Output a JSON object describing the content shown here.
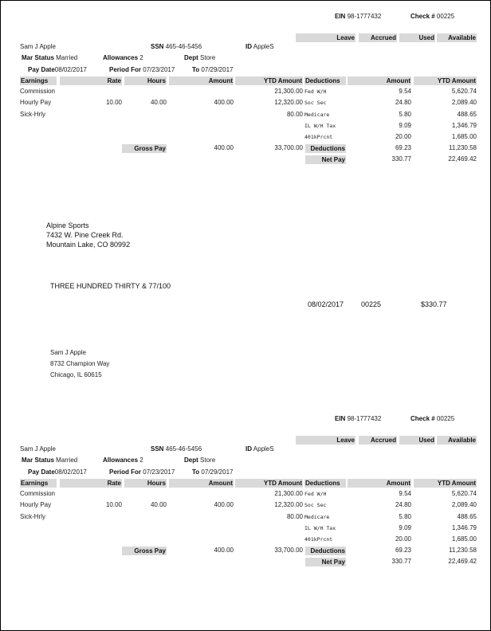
{
  "stub": {
    "ein_label": "EIN",
    "ein": "98-1777432",
    "check_label": "Check #",
    "check_no": "00225",
    "leave_headers": [
      "Leave",
      "Accrued",
      "Used",
      "Available"
    ],
    "employee_name": "Sam J Apple",
    "ssn_label": "SSN",
    "ssn": "465-46-5456",
    "id_label": "ID",
    "id": "AppleS",
    "mar_status_label": "Mar Status",
    "mar_status": "Married",
    "allowances_label": "Allowances",
    "allowances": "2",
    "dept_label": "Dept",
    "dept": "Store",
    "pay_date_label": "Pay Date",
    "pay_date": "08/02/2017",
    "period_for_label": "Period For",
    "period_for": "07/23/2017",
    "to_label": "To",
    "to": "07/29/2017",
    "earnings_headers": [
      "Earnings",
      "Rate",
      "Hours",
      "Amount",
      "YTD Amount"
    ],
    "deduction_headers": [
      "Deductions",
      "Amount",
      "YTD Amount"
    ],
    "earnings": [
      {
        "name": "Commission",
        "rate": "",
        "hours": "",
        "amount": "",
        "ytd": "21,300.00"
      },
      {
        "name": "Hourly Pay",
        "rate": "10.00",
        "hours": "40.00",
        "amount": "400.00",
        "ytd": "12,320.00"
      },
      {
        "name": "Sick-Hrly",
        "rate": "",
        "hours": "",
        "amount": "",
        "ytd": "80.00"
      }
    ],
    "deductions": [
      {
        "name": "Fed W/H",
        "amount": "9.54",
        "ytd": "5,620.74"
      },
      {
        "name": "Soc Sec",
        "amount": "24.80",
        "ytd": "2,089.40"
      },
      {
        "name": "Medicare",
        "amount": "5.80",
        "ytd": "488.65"
      },
      {
        "name": "IL W/H Tax",
        "amount": "9.09",
        "ytd": "1,346.79"
      },
      {
        "name": "401kPrcnt",
        "amount": "20.00",
        "ytd": "1,685.00"
      }
    ],
    "gross_pay_label": "Gross Pay",
    "gross_pay": "400.00",
    "gross_ytd": "33,700.00",
    "deductions_total_label": "Deductions",
    "deductions_total": "69.23",
    "deductions_ytd": "11,230.58",
    "net_pay_label": "Net Pay",
    "net_pay": "330.77",
    "net_ytd": "22,469.42"
  },
  "check": {
    "company": [
      "Alpine Sports",
      "7432 W. Pine Creek Rd.",
      "Mountain Lake, CO  80992"
    ],
    "amount_words": "THREE HUNDRED THIRTY & 77/100",
    "date": "08/02/2017",
    "check_no": "00225",
    "amount": "$330.77",
    "payee": [
      "Sam J Apple",
      "8732 Champion Way",
      "Chicago, IL  60615"
    ]
  }
}
